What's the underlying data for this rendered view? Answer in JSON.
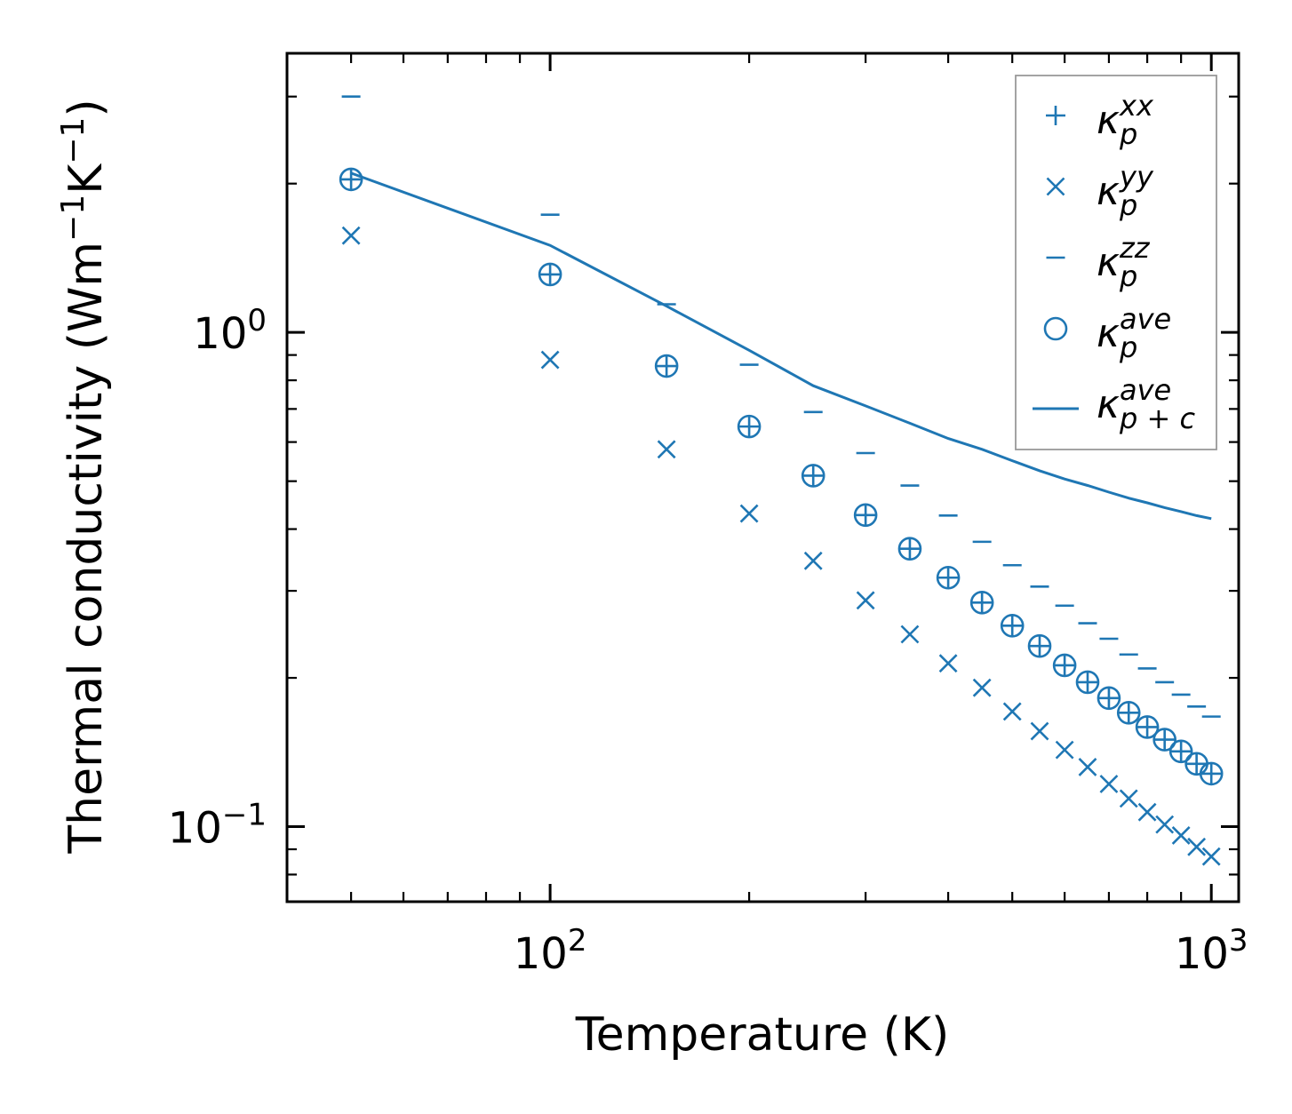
{
  "chart_data": {
    "type": "scatter",
    "xscale": "log",
    "yscale": "log",
    "xlabel": "Temperature (K)",
    "ylabel": {
      "prefix": "Thermal conductivity (Wm",
      "exp1": "−1",
      "mid": "K",
      "exp2": "−1",
      "suffix": ")"
    },
    "xlim": [
      40,
      1100
    ],
    "ylim": [
      0.0705,
      3.67
    ],
    "x_ticks": [
      {
        "value": 100,
        "base": "10",
        "exp": "2"
      },
      {
        "value": 1000,
        "base": "10",
        "exp": "3"
      }
    ],
    "y_ticks": [
      {
        "value": 0.1,
        "base": "10",
        "exp": "−1"
      },
      {
        "value": 1,
        "base": "10",
        "exp": "0"
      }
    ],
    "colors": {
      "series": "#1f77b4",
      "axis": "#000000",
      "legend_border": "#999999"
    },
    "x": [
      50,
      100,
      150,
      200,
      250,
      300,
      350,
      400,
      450,
      500,
      550,
      600,
      650,
      700,
      750,
      800,
      850,
      900,
      950,
      1000
    ],
    "series": [
      {
        "name": "kappa_p_xx",
        "marker": "plus",
        "values": [
          2.04,
          1.31,
          0.855,
          0.645,
          0.513,
          0.427,
          0.365,
          0.319,
          0.284,
          0.255,
          0.232,
          0.212,
          0.196,
          0.182,
          0.17,
          0.159,
          0.15,
          0.142,
          0.134,
          0.128
        ]
      },
      {
        "name": "kappa_p_yy",
        "marker": "x",
        "values": [
          1.57,
          0.88,
          0.58,
          0.43,
          0.345,
          0.287,
          0.245,
          0.214,
          0.191,
          0.171,
          0.156,
          0.143,
          0.132,
          0.122,
          0.114,
          0.107,
          0.101,
          0.096,
          0.091,
          0.087
        ]
      },
      {
        "name": "kappa_p_zz",
        "marker": "hline",
        "values": [
          3.0,
          1.73,
          1.14,
          0.86,
          0.69,
          0.57,
          0.49,
          0.426,
          0.377,
          0.338,
          0.306,
          0.28,
          0.258,
          0.24,
          0.223,
          0.209,
          0.196,
          0.185,
          0.175,
          0.167
        ]
      },
      {
        "name": "kappa_p_ave",
        "marker": "circle",
        "values": [
          2.04,
          1.31,
          0.855,
          0.645,
          0.513,
          0.427,
          0.365,
          0.319,
          0.284,
          0.255,
          0.232,
          0.212,
          0.196,
          0.182,
          0.17,
          0.159,
          0.15,
          0.142,
          0.134,
          0.128
        ]
      },
      {
        "name": "kappa_p+c_ave",
        "marker": "line",
        "values": [
          2.1,
          1.5,
          1.13,
          0.92,
          0.78,
          0.71,
          0.655,
          0.61,
          0.58,
          0.55,
          0.525,
          0.505,
          0.49,
          0.475,
          0.462,
          0.452,
          0.442,
          0.434,
          0.426,
          0.42
        ]
      }
    ],
    "legend": {
      "position": "top-right",
      "entries": [
        {
          "marker": "plus",
          "base": "κ",
          "sup": "xx",
          "sub": "p"
        },
        {
          "marker": "x",
          "base": "κ",
          "sup": "yy",
          "sub": "p"
        },
        {
          "marker": "hline",
          "base": "κ",
          "sup": "zz",
          "sub": "p"
        },
        {
          "marker": "circle",
          "base": "κ",
          "sup": "ave",
          "sub": "p"
        },
        {
          "marker": "line",
          "base": "κ",
          "sup": "ave",
          "sub": "p + c"
        }
      ]
    }
  }
}
